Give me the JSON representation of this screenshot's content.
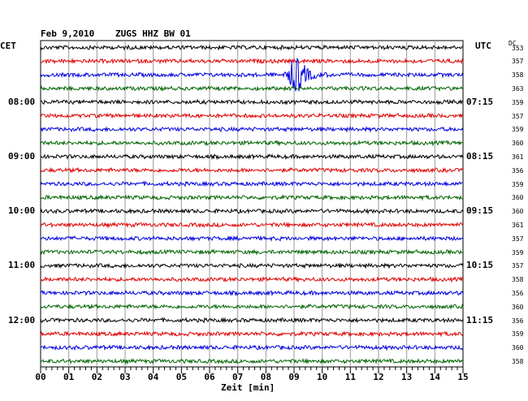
{
  "header": {
    "date": "Feb 9,2010",
    "station": "ZUGS HHZ BW 01",
    "left_zone": "CET",
    "right_zone": "UTC",
    "dc_label": "DC"
  },
  "chart_data": {
    "type": "line",
    "title": "Feb 9,2010   ZUGS HHZ BW 01",
    "xlabel": "Zeit [min]",
    "xlim": [
      0,
      15
    ],
    "x_ticks": [
      "00",
      "01",
      "02",
      "03",
      "04",
      "05",
      "06",
      "07",
      "08",
      "09",
      "10",
      "11",
      "12",
      "13",
      "14",
      "15"
    ],
    "trace_colors": [
      "#000000",
      "#e00000",
      "#0000e0",
      "#006400"
    ],
    "left_hour_labels": [
      "08:00",
      "09:00",
      "10:00",
      "11:00",
      "12:00"
    ],
    "right_hour_labels": [
      "07:15",
      "08:15",
      "09:15",
      "10:15",
      "11:15"
    ],
    "dc_values": [
      "353",
      "357",
      "358",
      "363",
      "359",
      "357",
      "359",
      "360",
      "361",
      "356",
      "359",
      "360",
      "360",
      "361",
      "357",
      "359",
      "357",
      "358",
      "356",
      "360",
      "356",
      "359",
      "360",
      "358"
    ],
    "event": {
      "trace_index": 2,
      "minute": 9.1,
      "description": ""
    }
  }
}
